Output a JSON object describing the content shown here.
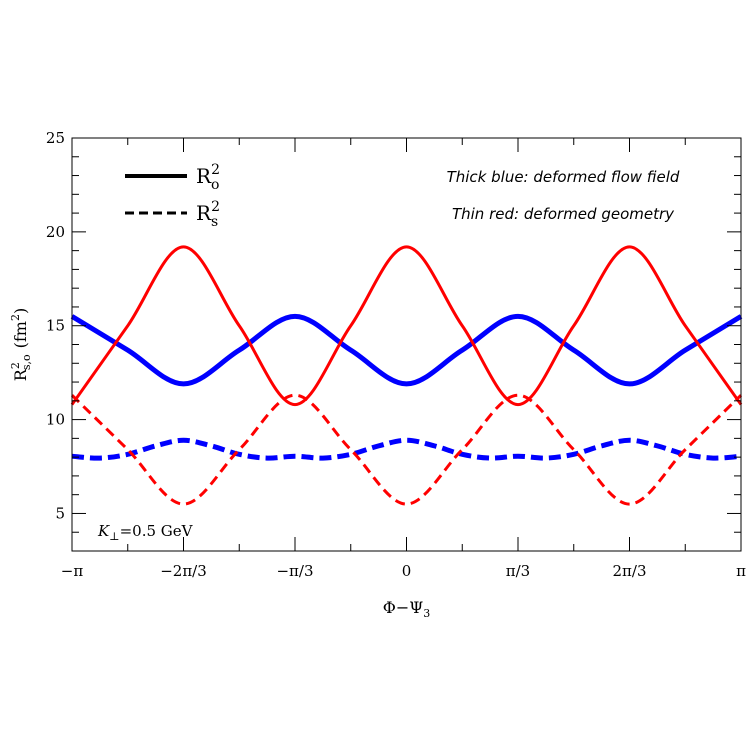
{
  "chart_data": {
    "type": "line",
    "xlabel": {
      "main": "Φ−Ψ",
      "sub": "3"
    },
    "ylabel": {
      "main": "R",
      "sup": "2",
      "sub": "s,o",
      "unit": "(fm",
      "unit_sup": "2",
      "unit_close": ")"
    },
    "xlim": [
      -3.14159,
      3.14159
    ],
    "ylim": [
      3,
      25
    ],
    "x_ticks": [
      {
        "value": -3.14159,
        "label": "−π"
      },
      {
        "value": -2.0944,
        "label": "−2π/3"
      },
      {
        "value": -1.0472,
        "label": "−π/3"
      },
      {
        "value": 0,
        "label": "0"
      },
      {
        "value": 1.0472,
        "label": "π/3"
      },
      {
        "value": 2.0944,
        "label": "2π/3"
      },
      {
        "value": 3.14159,
        "label": "π"
      }
    ],
    "y_ticks": [
      5,
      10,
      15,
      20,
      25
    ],
    "legend": [
      {
        "label": "R",
        "sub": "o",
        "sup": "2",
        "style": "solid"
      },
      {
        "label": "R",
        "sub": "s",
        "sup": "2",
        "style": "dashed"
      }
    ],
    "annotations": [
      "Thick blue: deformed flow field",
      "Thin red: deformed geometry"
    ],
    "param_label": {
      "var": "K",
      "sub": "⊥",
      "value": "=0.5 GeV"
    },
    "series": [
      {
        "name": "Thick blue R_o^2",
        "color": "#0000ff",
        "style": "solid",
        "weight": "thick",
        "x": [
          -3.14159,
          -2.61799,
          -2.0944,
          -1.5708,
          -1.0472,
          -0.5236,
          0,
          0.5236,
          1.0472,
          1.5708,
          2.0944,
          2.61799,
          3.14159
        ],
        "y": [
          15.5,
          13.7,
          11.9,
          13.7,
          15.5,
          13.7,
          11.9,
          13.7,
          15.5,
          13.7,
          11.9,
          13.7,
          15.5
        ]
      },
      {
        "name": "Thin red R_o^2",
        "color": "#ff0000",
        "style": "solid",
        "weight": "thin",
        "x": [
          -3.14159,
          -2.61799,
          -2.0944,
          -1.5708,
          -1.0472,
          -0.5236,
          0,
          0.5236,
          1.0472,
          1.5708,
          2.0944,
          2.61799,
          3.14159
        ],
        "y": [
          10.8,
          15.0,
          19.2,
          15.0,
          10.8,
          15.0,
          19.2,
          15.0,
          10.8,
          15.0,
          19.2,
          15.0,
          10.8
        ]
      },
      {
        "name": "Thick blue R_s^2",
        "color": "#0000ff",
        "style": "dashed",
        "weight": "thick",
        "x": [
          -3.14159,
          -2.87979,
          -2.61799,
          -2.35619,
          -2.0944,
          -1.8326,
          -1.5708,
          -1.309,
          -1.0472,
          -0.7854,
          -0.5236,
          -0.2618,
          0,
          0.2618,
          0.5236,
          0.7854,
          1.0472,
          1.309,
          1.5708,
          1.8326,
          2.0944,
          2.35619,
          2.61799,
          2.87979,
          3.14159
        ],
        "y": [
          8.05,
          7.95,
          8.15,
          8.6,
          8.9,
          8.6,
          8.15,
          7.95,
          8.05,
          7.95,
          8.15,
          8.6,
          8.9,
          8.6,
          8.15,
          7.95,
          8.05,
          7.95,
          8.15,
          8.6,
          8.9,
          8.6,
          8.15,
          7.95,
          8.05
        ]
      },
      {
        "name": "Thin red R_s^2",
        "color": "#ff0000",
        "style": "dashed",
        "weight": "thin",
        "x": [
          -3.14159,
          -2.61799,
          -2.0944,
          -1.5708,
          -1.0472,
          -0.5236,
          0,
          0.5236,
          1.0472,
          1.5708,
          2.0944,
          2.61799,
          3.14159
        ],
        "y": [
          11.3,
          8.4,
          5.5,
          8.4,
          11.3,
          8.4,
          5.5,
          8.4,
          11.3,
          8.4,
          5.5,
          8.4,
          11.3
        ]
      }
    ]
  }
}
